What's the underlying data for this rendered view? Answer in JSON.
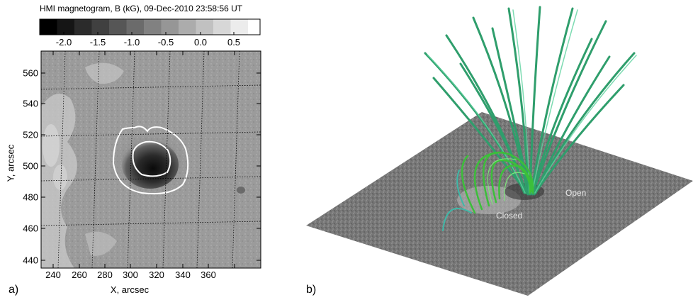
{
  "panel_a": {
    "title": "HMI magnetogram,  B (kG), 09-Dec-2010 23:58:56 UT",
    "label": "a)",
    "colorbar_ticks": [
      "-2.0",
      "-1.5",
      "-1.0",
      "-0.5",
      "0.0",
      "0.5"
    ],
    "xlabel": "X, arcsec",
    "ylabel": "Y, arcsec",
    "xticks": [
      "240",
      "260",
      "280",
      "300",
      "320",
      "340",
      "360"
    ],
    "yticks": [
      "560",
      "540",
      "520",
      "500",
      "480",
      "460",
      "440"
    ]
  },
  "panel_b": {
    "label": "b)",
    "annotation_open": "Open",
    "annotation_closed": "Closed"
  }
}
